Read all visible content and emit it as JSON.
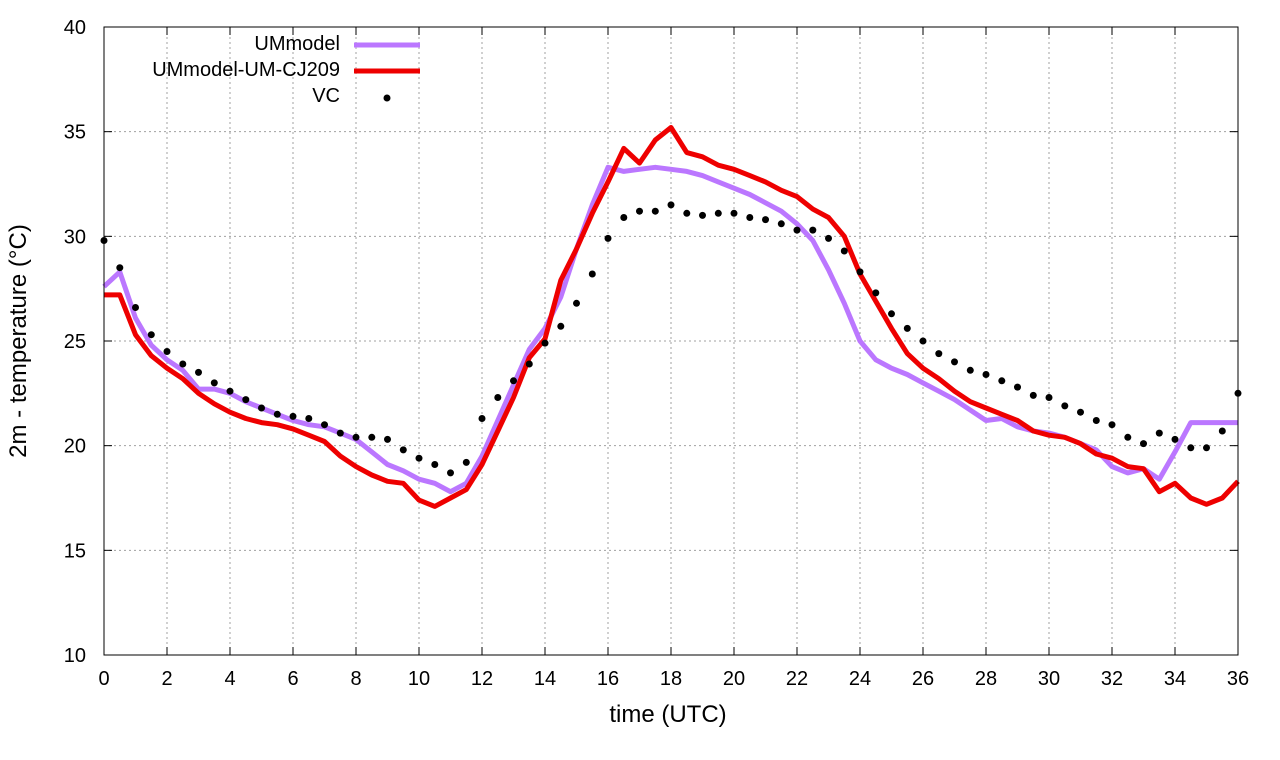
{
  "chart_data": {
    "type": "line",
    "title": "",
    "xlabel": "time (UTC)",
    "ylabel": "2m - temperature (°C)",
    "xlim": [
      0,
      36
    ],
    "ylim": [
      10,
      40
    ],
    "xticks": [
      0,
      2,
      4,
      6,
      8,
      10,
      12,
      14,
      16,
      18,
      20,
      22,
      24,
      26,
      28,
      30,
      32,
      34,
      36
    ],
    "yticks": [
      10,
      15,
      20,
      25,
      30,
      35,
      40
    ],
    "grid": true,
    "legend_position": "top-left",
    "series": [
      {
        "name": "UMmodel",
        "style": "line",
        "color": "#bb77ff",
        "x": [
          0,
          0.5,
          1,
          1.5,
          2,
          2.5,
          3,
          3.5,
          4,
          4.5,
          5,
          5.5,
          6,
          6.5,
          7,
          7.5,
          8,
          8.5,
          9,
          9.5,
          10,
          10.5,
          11,
          11.5,
          12,
          12.5,
          13,
          13.5,
          14,
          14.5,
          15,
          15.5,
          16,
          16.5,
          17,
          17.5,
          18,
          18.5,
          19,
          19.5,
          20,
          20.5,
          21,
          21.5,
          22,
          22.5,
          23,
          23.5,
          24,
          24.5,
          25,
          25.5,
          26,
          26.5,
          27,
          27.5,
          28,
          28.5,
          29,
          29.5,
          30,
          30.5,
          31,
          31.5,
          32,
          32.5,
          33,
          33.5,
          34,
          34.5,
          35,
          35.5,
          36
        ],
        "values": [
          27.6,
          28.3,
          26.1,
          24.8,
          24.1,
          23.6,
          22.7,
          22.7,
          22.5,
          22.1,
          21.8,
          21.5,
          21.2,
          21.0,
          20.9,
          20.6,
          20.3,
          19.7,
          19.1,
          18.8,
          18.4,
          18.2,
          17.8,
          18.2,
          19.5,
          21.2,
          22.9,
          24.6,
          25.6,
          27.1,
          29.4,
          31.5,
          33.3,
          33.1,
          33.2,
          33.3,
          33.2,
          33.1,
          32.9,
          32.6,
          32.3,
          32.0,
          31.6,
          31.2,
          30.6,
          29.8,
          28.4,
          26.8,
          25.0,
          24.1,
          23.7,
          23.4,
          23.0,
          22.6,
          22.2,
          21.7,
          21.2,
          21.3,
          20.9,
          20.7,
          20.6,
          20.4,
          20.1,
          19.8,
          19.0,
          18.7,
          18.9,
          18.4,
          19.7,
          21.1,
          21.1,
          21.1,
          21.1
        ]
      },
      {
        "name": "UMmodel-UM-CJ209",
        "style": "line",
        "color": "#ee0000",
        "x": [
          0,
          0.5,
          1,
          1.5,
          2,
          2.5,
          3,
          3.5,
          4,
          4.5,
          5,
          5.5,
          6,
          6.5,
          7,
          7.5,
          8,
          8.5,
          9,
          9.5,
          10,
          10.5,
          11,
          11.5,
          12,
          12.5,
          13,
          13.5,
          14,
          14.5,
          15,
          15.5,
          16,
          16.5,
          17,
          17.5,
          18,
          18.5,
          19,
          19.5,
          20,
          20.5,
          21,
          21.5,
          22,
          22.5,
          23,
          23.5,
          24,
          24.5,
          25,
          25.5,
          26,
          26.5,
          27,
          27.5,
          28,
          28.5,
          29,
          29.5,
          30,
          30.5,
          31,
          31.5,
          32,
          32.5,
          33,
          33.5,
          34,
          34.5,
          35,
          35.5,
          36
        ],
        "values": [
          27.2,
          27.2,
          25.3,
          24.3,
          23.7,
          23.2,
          22.5,
          22.0,
          21.6,
          21.3,
          21.1,
          21.0,
          20.8,
          20.5,
          20.2,
          19.5,
          19.0,
          18.6,
          18.3,
          18.2,
          17.4,
          17.1,
          17.5,
          17.9,
          19.1,
          20.7,
          22.3,
          24.2,
          25.1,
          27.9,
          29.4,
          31.1,
          32.6,
          34.2,
          33.5,
          34.6,
          35.2,
          34.0,
          33.8,
          33.4,
          33.2,
          32.9,
          32.6,
          32.2,
          31.9,
          31.3,
          30.9,
          30.0,
          28.2,
          26.9,
          25.6,
          24.4,
          23.7,
          23.2,
          22.6,
          22.1,
          21.8,
          21.5,
          21.2,
          20.7,
          20.5,
          20.4,
          20.1,
          19.6,
          19.4,
          19.0,
          18.9,
          17.8,
          18.2,
          17.5,
          17.2,
          17.5,
          18.3
        ]
      },
      {
        "name": "VC",
        "style": "points",
        "color": "#000000",
        "x": [
          0,
          0.5,
          1,
          1.5,
          2,
          2.5,
          3,
          3.5,
          4,
          4.5,
          5,
          5.5,
          6,
          6.5,
          7,
          7.5,
          8,
          8.5,
          9,
          9.5,
          10,
          10.5,
          11,
          11.5,
          12,
          12.5,
          13,
          13.5,
          14,
          14.5,
          15,
          15.5,
          16,
          16.5,
          17,
          17.5,
          18,
          18.5,
          19,
          19.5,
          20,
          20.5,
          21,
          21.5,
          22,
          22.5,
          23,
          23.5,
          24,
          24.5,
          25,
          25.5,
          26,
          26.5,
          27,
          27.5,
          28,
          28.5,
          29,
          29.5,
          30,
          30.5,
          31,
          31.5,
          32,
          32.5,
          33,
          33.5,
          34,
          34.5,
          35,
          35.5,
          36
        ],
        "values": [
          29.8,
          28.5,
          26.6,
          25.3,
          24.5,
          23.9,
          23.5,
          23.0,
          22.6,
          22.2,
          21.8,
          21.5,
          21.4,
          21.3,
          21.0,
          20.6,
          20.4,
          20.4,
          20.3,
          19.8,
          19.4,
          19.1,
          18.7,
          19.2,
          21.3,
          22.3,
          23.1,
          23.9,
          24.9,
          25.7,
          26.8,
          28.2,
          29.9,
          30.9,
          31.2,
          31.2,
          31.5,
          31.1,
          31.0,
          31.1,
          31.1,
          30.9,
          30.8,
          30.6,
          30.3,
          30.3,
          29.9,
          29.3,
          28.3,
          27.3,
          26.3,
          25.6,
          25.0,
          24.4,
          24.0,
          23.6,
          23.4,
          23.1,
          22.8,
          22.4,
          22.3,
          21.9,
          21.6,
          21.2,
          21.0,
          20.4,
          20.1,
          20.6,
          20.3,
          19.9,
          19.9,
          20.7,
          22.5
        ]
      }
    ]
  }
}
